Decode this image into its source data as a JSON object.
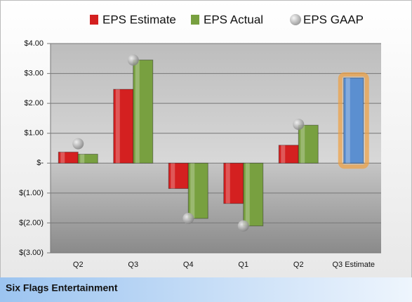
{
  "chart_data": {
    "type": "bar",
    "categories": [
      "Q2",
      "Q3",
      "Q4",
      "Q1",
      "Q2",
      "Q3 Estimate"
    ],
    "series": [
      {
        "name": "EPS Estimate",
        "color": "#d42020",
        "values": [
          0.37,
          2.47,
          -0.85,
          -1.35,
          0.6,
          2.85
        ]
      },
      {
        "name": "EPS Actual",
        "color": "#78a040",
        "values": [
          0.3,
          3.45,
          -1.85,
          -2.1,
          1.27,
          null
        ]
      },
      {
        "name": "EPS GAAP",
        "color": "#a8a8a8",
        "values": [
          0.65,
          3.45,
          -1.85,
          -2.1,
          1.3,
          null
        ]
      }
    ],
    "estimate_color": "#5b8fd0",
    "ylim": [
      -3,
      4
    ],
    "yticks": [
      {
        "value": -3,
        "label": "$(3.00)"
      },
      {
        "value": -2,
        "label": "$(2.00)"
      },
      {
        "value": -1,
        "label": "$(1.00)"
      },
      {
        "value": 0,
        "label": "$-"
      },
      {
        "value": 1,
        "label": "$1.00"
      },
      {
        "value": 2,
        "label": "$2.00"
      },
      {
        "value": 3,
        "label": "$3.00"
      },
      {
        "value": 4,
        "label": "$4.00"
      }
    ],
    "grid": true,
    "footer": "Six Flags Entertainment"
  }
}
